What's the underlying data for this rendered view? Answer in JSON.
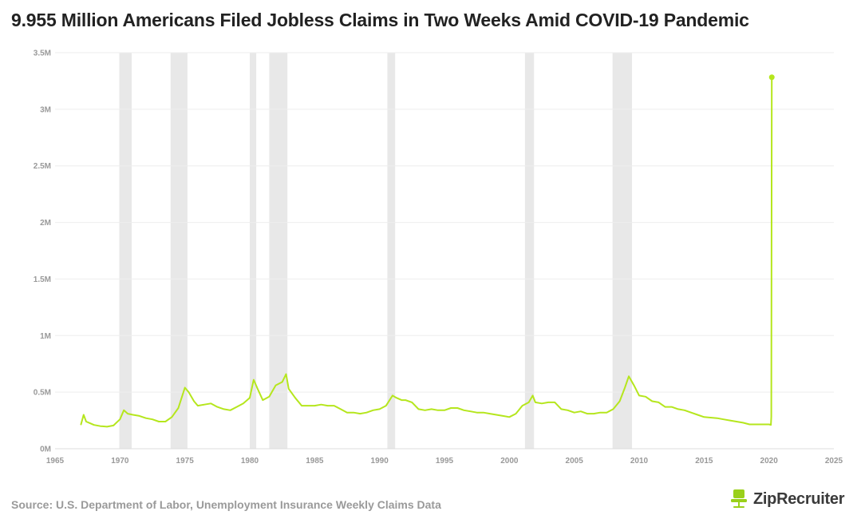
{
  "title": "9.955 Million Americans Filed Jobless Claims in Two Weeks Amid COVID-19 Pandemic",
  "source": "Source: U.S. Department of Labor, Unemployment Insurance Weekly Claims Data",
  "logo": {
    "text": "ZipRecruiter",
    "icon": "chair-icon",
    "color": "#9ad01a"
  },
  "colors": {
    "line": "#b5e61d",
    "recession": "#e8e8e8",
    "grid": "#eeeeee",
    "tick": "#999999"
  },
  "chart_data": {
    "type": "line",
    "title": "9.955 Million Americans Filed Jobless Claims in Two Weeks Amid COVID-19 Pandemic",
    "xlabel": "",
    "ylabel": "",
    "xlim": [
      1965,
      2025
    ],
    "ylim": [
      0,
      3500000
    ],
    "x_ticks": [
      1965,
      1970,
      1975,
      1980,
      1985,
      1990,
      1995,
      2000,
      2005,
      2010,
      2015,
      2020,
      2025
    ],
    "y_ticks": [
      {
        "value": 0,
        "label": "0M"
      },
      {
        "value": 500000,
        "label": "0.5M"
      },
      {
        "value": 1000000,
        "label": "1M"
      },
      {
        "value": 1500000,
        "label": "1.5M"
      },
      {
        "value": 2000000,
        "label": "2M"
      },
      {
        "value": 2500000,
        "label": "2.5M"
      },
      {
        "value": 3000000,
        "label": "3M"
      },
      {
        "value": 3500000,
        "label": "3.5M"
      }
    ],
    "grid": "horizontal",
    "legend": "none",
    "recessions": [
      [
        1969.95,
        1970.9
      ],
      [
        1973.9,
        1975.2
      ],
      [
        1980.0,
        1980.5
      ],
      [
        1981.5,
        1982.9
      ],
      [
        1990.6,
        1991.2
      ],
      [
        2001.2,
        2001.9
      ],
      [
        2007.95,
        2009.45
      ]
    ],
    "series": [
      {
        "values": [
          [
            1967.0,
            215000
          ],
          [
            1967.2,
            300000
          ],
          [
            1967.4,
            240000
          ],
          [
            1967.7,
            225000
          ],
          [
            1968.0,
            210000
          ],
          [
            1968.5,
            200000
          ],
          [
            1969.0,
            195000
          ],
          [
            1969.5,
            205000
          ],
          [
            1970.0,
            260000
          ],
          [
            1970.3,
            340000
          ],
          [
            1970.6,
            310000
          ],
          [
            1971.0,
            300000
          ],
          [
            1971.5,
            290000
          ],
          [
            1972.0,
            270000
          ],
          [
            1972.5,
            260000
          ],
          [
            1973.0,
            240000
          ],
          [
            1973.5,
            240000
          ],
          [
            1974.0,
            280000
          ],
          [
            1974.5,
            360000
          ],
          [
            1975.0,
            540000
          ],
          [
            1975.3,
            500000
          ],
          [
            1975.7,
            420000
          ],
          [
            1976.0,
            380000
          ],
          [
            1976.5,
            390000
          ],
          [
            1977.0,
            400000
          ],
          [
            1977.5,
            370000
          ],
          [
            1978.0,
            350000
          ],
          [
            1978.5,
            340000
          ],
          [
            1979.0,
            370000
          ],
          [
            1979.5,
            400000
          ],
          [
            1980.0,
            450000
          ],
          [
            1980.3,
            610000
          ],
          [
            1980.6,
            530000
          ],
          [
            1981.0,
            430000
          ],
          [
            1981.5,
            460000
          ],
          [
            1982.0,
            560000
          ],
          [
            1982.5,
            590000
          ],
          [
            1982.8,
            660000
          ],
          [
            1983.0,
            530000
          ],
          [
            1983.5,
            450000
          ],
          [
            1984.0,
            380000
          ],
          [
            1984.5,
            380000
          ],
          [
            1985.0,
            380000
          ],
          [
            1985.5,
            390000
          ],
          [
            1986.0,
            380000
          ],
          [
            1986.5,
            380000
          ],
          [
            1987.0,
            350000
          ],
          [
            1987.5,
            320000
          ],
          [
            1988.0,
            320000
          ],
          [
            1988.5,
            310000
          ],
          [
            1989.0,
            320000
          ],
          [
            1989.5,
            340000
          ],
          [
            1990.0,
            350000
          ],
          [
            1990.5,
            380000
          ],
          [
            1991.0,
            470000
          ],
          [
            1991.3,
            450000
          ],
          [
            1991.7,
            430000
          ],
          [
            1992.0,
            430000
          ],
          [
            1992.5,
            410000
          ],
          [
            1993.0,
            350000
          ],
          [
            1993.5,
            340000
          ],
          [
            1994.0,
            350000
          ],
          [
            1994.5,
            340000
          ],
          [
            1995.0,
            340000
          ],
          [
            1995.5,
            360000
          ],
          [
            1996.0,
            360000
          ],
          [
            1996.5,
            340000
          ],
          [
            1997.0,
            330000
          ],
          [
            1997.5,
            320000
          ],
          [
            1998.0,
            320000
          ],
          [
            1998.5,
            310000
          ],
          [
            1999.0,
            300000
          ],
          [
            1999.5,
            290000
          ],
          [
            2000.0,
            280000
          ],
          [
            2000.5,
            310000
          ],
          [
            2001.0,
            380000
          ],
          [
            2001.5,
            410000
          ],
          [
            2001.8,
            470000
          ],
          [
            2002.0,
            410000
          ],
          [
            2002.5,
            400000
          ],
          [
            2003.0,
            410000
          ],
          [
            2003.5,
            410000
          ],
          [
            2004.0,
            350000
          ],
          [
            2004.5,
            340000
          ],
          [
            2005.0,
            320000
          ],
          [
            2005.5,
            330000
          ],
          [
            2006.0,
            310000
          ],
          [
            2006.5,
            310000
          ],
          [
            2007.0,
            320000
          ],
          [
            2007.5,
            320000
          ],
          [
            2008.0,
            350000
          ],
          [
            2008.5,
            420000
          ],
          [
            2008.9,
            540000
          ],
          [
            2009.2,
            640000
          ],
          [
            2009.6,
            560000
          ],
          [
            2010.0,
            470000
          ],
          [
            2010.5,
            460000
          ],
          [
            2011.0,
            420000
          ],
          [
            2011.5,
            410000
          ],
          [
            2012.0,
            370000
          ],
          [
            2012.5,
            370000
          ],
          [
            2013.0,
            350000
          ],
          [
            2013.5,
            340000
          ],
          [
            2014.0,
            320000
          ],
          [
            2014.5,
            300000
          ],
          [
            2015.0,
            280000
          ],
          [
            2015.5,
            275000
          ],
          [
            2016.0,
            270000
          ],
          [
            2016.5,
            260000
          ],
          [
            2017.0,
            250000
          ],
          [
            2017.5,
            240000
          ],
          [
            2018.0,
            230000
          ],
          [
            2018.5,
            215000
          ],
          [
            2019.0,
            215000
          ],
          [
            2019.5,
            215000
          ],
          [
            2020.0,
            215000
          ],
          [
            2020.15,
            211000
          ],
          [
            2020.18,
            282000
          ],
          [
            2020.22,
            3283000
          ]
        ]
      }
    ],
    "annotation": {
      "x": 2020.22,
      "y": 3283000
    }
  }
}
